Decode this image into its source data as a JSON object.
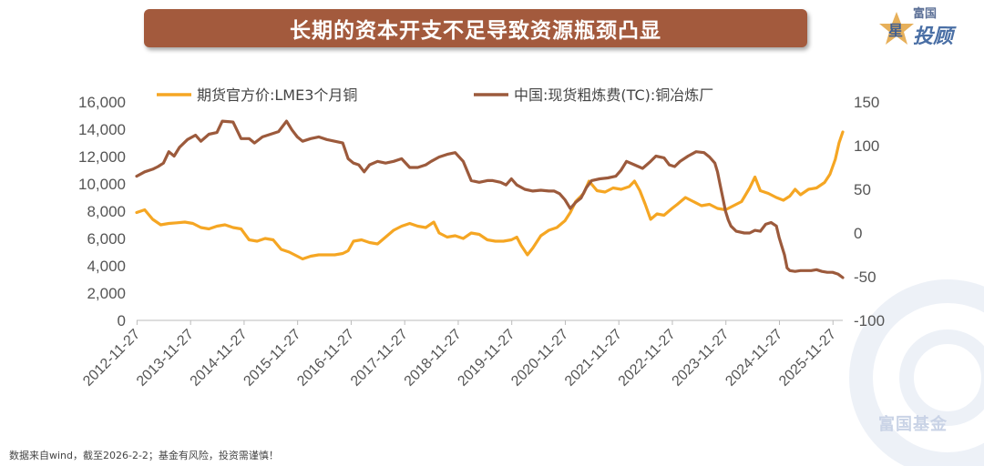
{
  "header": {
    "title": "长期的资本开支不足导致资源瓶颈凸显"
  },
  "logo": {
    "small_text": "富国",
    "big_text": "投顾",
    "star_char": "星",
    "watermark": "富国基金"
  },
  "footer": {
    "note": "数据来自wind，截至2026-2-2；基金有风险，投资需谨慎！"
  },
  "colors": {
    "lme": "#f5a623",
    "tc": "#9c5a3c",
    "title_bg": "#a35a3d",
    "axis": "#bbbbbb"
  },
  "chart_data": {
    "type": "line",
    "x_ticks": [
      "2012-11-27",
      "2013-11-27",
      "2014-11-27",
      "2015-11-27",
      "2016-11-27",
      "2017-11-27",
      "2018-11-27",
      "2019-11-27",
      "2020-11-27",
      "2021-11-27",
      "2022-11-27",
      "2023-11-27",
      "2024-11-27",
      "2025-11-27"
    ],
    "x_range": [
      2012.9,
      2026.09
    ],
    "y_left": {
      "range": [
        0,
        16000
      ],
      "ticks": [
        "0",
        "2,000",
        "4,000",
        "6,000",
        "8,000",
        "10,000",
        "12,000",
        "14,000",
        "16,000"
      ]
    },
    "y_right": {
      "range": [
        -100,
        150
      ],
      "ticks": [
        "-100",
        "-50",
        "0",
        "50",
        "100",
        "150"
      ]
    },
    "legend_position": "top",
    "series": [
      {
        "name": "期货官方价:LME3个月铜",
        "axis": "left",
        "points": [
          [
            2012.9,
            7900
          ],
          [
            2013.05,
            8100
          ],
          [
            2013.2,
            7400
          ],
          [
            2013.35,
            7000
          ],
          [
            2013.5,
            7100
          ],
          [
            2013.65,
            7150
          ],
          [
            2013.8,
            7200
          ],
          [
            2013.95,
            7100
          ],
          [
            2014.1,
            6800
          ],
          [
            2014.25,
            6700
          ],
          [
            2014.4,
            6900
          ],
          [
            2014.55,
            7000
          ],
          [
            2014.7,
            6800
          ],
          [
            2014.85,
            6700
          ],
          [
            2015.0,
            5900
          ],
          [
            2015.15,
            5800
          ],
          [
            2015.3,
            6000
          ],
          [
            2015.45,
            5900
          ],
          [
            2015.6,
            5200
          ],
          [
            2015.75,
            5000
          ],
          [
            2015.9,
            4700
          ],
          [
            2016.0,
            4500
          ],
          [
            2016.15,
            4700
          ],
          [
            2016.3,
            4800
          ],
          [
            2016.45,
            4800
          ],
          [
            2016.6,
            4800
          ],
          [
            2016.75,
            4900
          ],
          [
            2016.85,
            5100
          ],
          [
            2016.95,
            5800
          ],
          [
            2017.1,
            5900
          ],
          [
            2017.25,
            5700
          ],
          [
            2017.4,
            5600
          ],
          [
            2017.55,
            6100
          ],
          [
            2017.7,
            6600
          ],
          [
            2017.85,
            6900
          ],
          [
            2018.0,
            7100
          ],
          [
            2018.15,
            6900
          ],
          [
            2018.3,
            6800
          ],
          [
            2018.45,
            7200
          ],
          [
            2018.55,
            6400
          ],
          [
            2018.7,
            6100
          ],
          [
            2018.85,
            6200
          ],
          [
            2019.0,
            6000
          ],
          [
            2019.15,
            6400
          ],
          [
            2019.3,
            6300
          ],
          [
            2019.45,
            5900
          ],
          [
            2019.6,
            5800
          ],
          [
            2019.75,
            5800
          ],
          [
            2019.9,
            5900
          ],
          [
            2020.0,
            6100
          ],
          [
            2020.08,
            5500
          ],
          [
            2020.2,
            4800
          ],
          [
            2020.3,
            5300
          ],
          [
            2020.45,
            6200
          ],
          [
            2020.6,
            6600
          ],
          [
            2020.75,
            6800
          ],
          [
            2020.9,
            7300
          ],
          [
            2021.0,
            7900
          ],
          [
            2021.1,
            8700
          ],
          [
            2021.25,
            9300
          ],
          [
            2021.35,
            10200
          ],
          [
            2021.5,
            9500
          ],
          [
            2021.65,
            9400
          ],
          [
            2021.8,
            9700
          ],
          [
            2021.95,
            9600
          ],
          [
            2022.1,
            9800
          ],
          [
            2022.2,
            10200
          ],
          [
            2022.3,
            9500
          ],
          [
            2022.4,
            8500
          ],
          [
            2022.5,
            7400
          ],
          [
            2022.62,
            7800
          ],
          [
            2022.75,
            7700
          ],
          [
            2022.9,
            8200
          ],
          [
            2023.0,
            8500
          ],
          [
            2023.15,
            9000
          ],
          [
            2023.3,
            8700
          ],
          [
            2023.45,
            8400
          ],
          [
            2023.6,
            8500
          ],
          [
            2023.75,
            8200
          ],
          [
            2023.9,
            8100
          ],
          [
            2024.05,
            8400
          ],
          [
            2024.2,
            8700
          ],
          [
            2024.35,
            9700
          ],
          [
            2024.45,
            10500
          ],
          [
            2024.55,
            9500
          ],
          [
            2024.7,
            9300
          ],
          [
            2024.85,
            9000
          ],
          [
            2024.98,
            8800
          ],
          [
            2025.1,
            9100
          ],
          [
            2025.2,
            9600
          ],
          [
            2025.3,
            9200
          ],
          [
            2025.45,
            9600
          ],
          [
            2025.6,
            9700
          ],
          [
            2025.75,
            10100
          ],
          [
            2025.85,
            10700
          ],
          [
            2025.95,
            11800
          ],
          [
            2026.02,
            13000
          ],
          [
            2026.09,
            13800
          ]
        ]
      },
      {
        "name": "中国:现货粗炼费(TC):铜冶炼厂",
        "axis": "right",
        "points": [
          [
            2012.9,
            65
          ],
          [
            2013.05,
            70
          ],
          [
            2013.2,
            73
          ],
          [
            2013.3,
            76
          ],
          [
            2013.4,
            80
          ],
          [
            2013.5,
            93
          ],
          [
            2013.6,
            88
          ],
          [
            2013.7,
            98
          ],
          [
            2013.85,
            107
          ],
          [
            2014.0,
            112
          ],
          [
            2014.1,
            105
          ],
          [
            2014.25,
            113
          ],
          [
            2014.4,
            115
          ],
          [
            2014.5,
            128
          ],
          [
            2014.7,
            127
          ],
          [
            2014.85,
            108
          ],
          [
            2015.0,
            108
          ],
          [
            2015.1,
            103
          ],
          [
            2015.25,
            110
          ],
          [
            2015.4,
            113
          ],
          [
            2015.55,
            116
          ],
          [
            2015.7,
            128
          ],
          [
            2015.8,
            118
          ],
          [
            2015.9,
            110
          ],
          [
            2016.0,
            105
          ],
          [
            2016.15,
            108
          ],
          [
            2016.3,
            110
          ],
          [
            2016.45,
            107
          ],
          [
            2016.6,
            105
          ],
          [
            2016.75,
            103
          ],
          [
            2016.85,
            85
          ],
          [
            2016.95,
            80
          ],
          [
            2017.05,
            78
          ],
          [
            2017.15,
            70
          ],
          [
            2017.25,
            78
          ],
          [
            2017.4,
            82
          ],
          [
            2017.55,
            80
          ],
          [
            2017.7,
            82
          ],
          [
            2017.85,
            85
          ],
          [
            2018.0,
            75
          ],
          [
            2018.15,
            75
          ],
          [
            2018.3,
            78
          ],
          [
            2018.4,
            82
          ],
          [
            2018.55,
            87
          ],
          [
            2018.7,
            90
          ],
          [
            2018.85,
            92
          ],
          [
            2019.0,
            82
          ],
          [
            2019.15,
            60
          ],
          [
            2019.3,
            58
          ],
          [
            2019.45,
            60
          ],
          [
            2019.55,
            60
          ],
          [
            2019.7,
            58
          ],
          [
            2019.8,
            55
          ],
          [
            2019.9,
            62
          ],
          [
            2020.0,
            55
          ],
          [
            2020.15,
            50
          ],
          [
            2020.3,
            48
          ],
          [
            2020.45,
            49
          ],
          [
            2020.6,
            48
          ],
          [
            2020.7,
            48
          ],
          [
            2020.8,
            45
          ],
          [
            2020.9,
            38
          ],
          [
            2021.0,
            28
          ],
          [
            2021.1,
            35
          ],
          [
            2021.2,
            40
          ],
          [
            2021.3,
            52
          ],
          [
            2021.4,
            60
          ],
          [
            2021.55,
            62
          ],
          [
            2021.7,
            63
          ],
          [
            2021.85,
            65
          ],
          [
            2021.95,
            72
          ],
          [
            2022.05,
            82
          ],
          [
            2022.2,
            78
          ],
          [
            2022.35,
            74
          ],
          [
            2022.5,
            82
          ],
          [
            2022.6,
            88
          ],
          [
            2022.75,
            86
          ],
          [
            2022.85,
            78
          ],
          [
            2022.95,
            76
          ],
          [
            2023.05,
            82
          ],
          [
            2023.2,
            88
          ],
          [
            2023.35,
            93
          ],
          [
            2023.5,
            92
          ],
          [
            2023.6,
            87
          ],
          [
            2023.7,
            80
          ],
          [
            2023.75,
            70
          ],
          [
            2023.8,
            55
          ],
          [
            2023.85,
            40
          ],
          [
            2023.9,
            25
          ],
          [
            2023.95,
            15
          ],
          [
            2024.0,
            8
          ],
          [
            2024.1,
            2
          ],
          [
            2024.25,
            0
          ],
          [
            2024.35,
            0
          ],
          [
            2024.45,
            3
          ],
          [
            2024.55,
            2
          ],
          [
            2024.65,
            10
          ],
          [
            2024.75,
            12
          ],
          [
            2024.85,
            8
          ],
          [
            2024.9,
            -5
          ],
          [
            2024.95,
            -15
          ],
          [
            2025.0,
            -25
          ],
          [
            2025.05,
            -40
          ],
          [
            2025.1,
            -43
          ],
          [
            2025.2,
            -44
          ],
          [
            2025.3,
            -43
          ],
          [
            2025.4,
            -43
          ],
          [
            2025.5,
            -43
          ],
          [
            2025.6,
            -42
          ],
          [
            2025.7,
            -44
          ],
          [
            2025.8,
            -45
          ],
          [
            2025.9,
            -45
          ],
          [
            2026.0,
            -47
          ],
          [
            2026.09,
            -51
          ]
        ]
      }
    ]
  }
}
